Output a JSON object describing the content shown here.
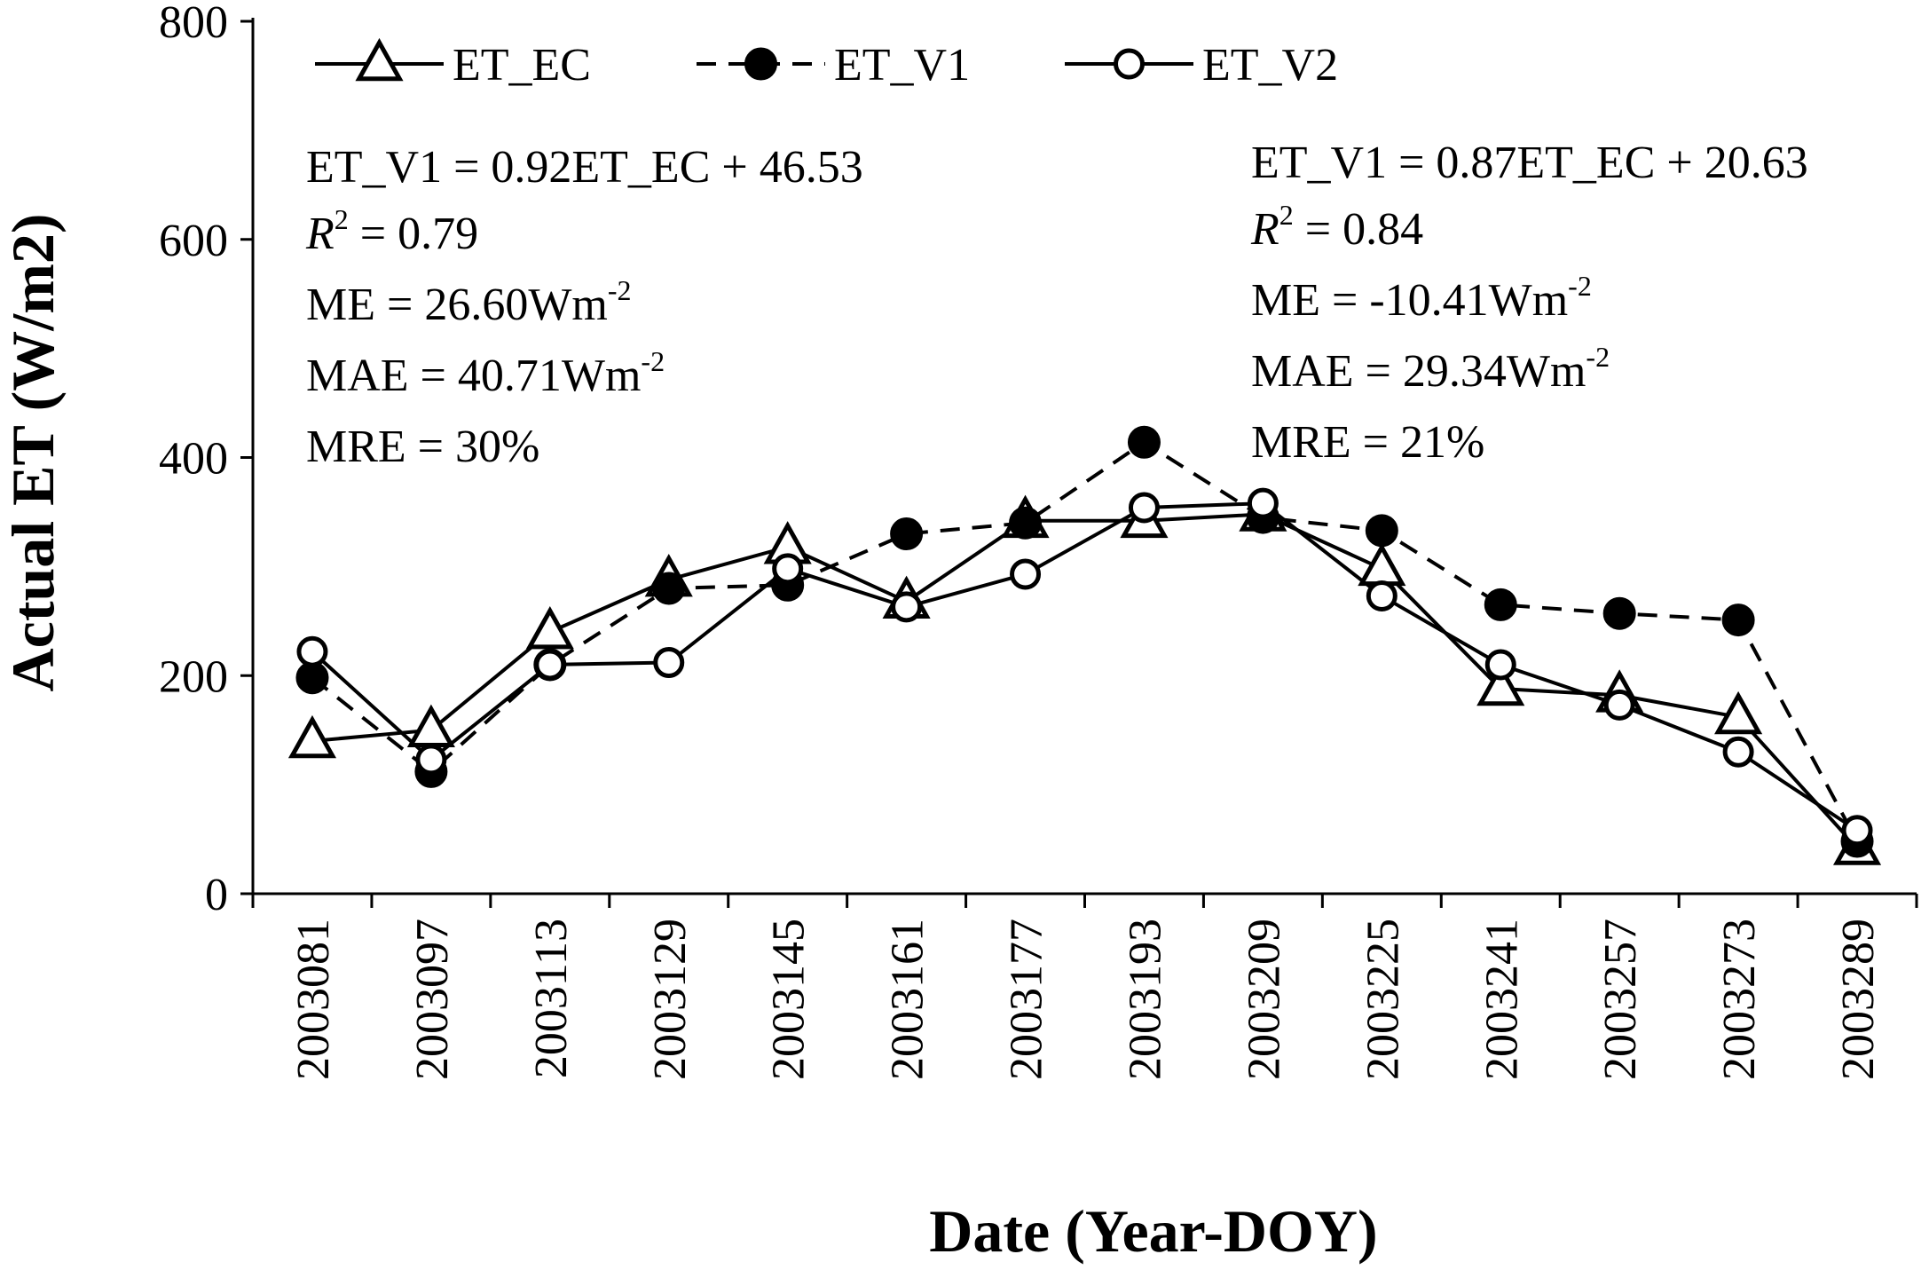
{
  "chart_data": {
    "type": "line",
    "xlabel": "Date (Year-DOY)",
    "ylabel": "Actual ET (W/m2)",
    "ylim": [
      0,
      800
    ],
    "yticks": [
      0,
      200,
      400,
      600,
      800
    ],
    "grid": false,
    "legend_position": "top",
    "categories": [
      "2003081",
      "2003097",
      "2003113",
      "2003129",
      "2003145",
      "2003161",
      "2003177",
      "2003193",
      "2003209",
      "2003225",
      "2003241",
      "2003257",
      "2003273",
      "2003289"
    ],
    "series": [
      {
        "name": "ET_EC",
        "marker": "open-triangle",
        "line": "solid",
        "values": [
          140,
          150,
          240,
          288,
          318,
          268,
          342,
          342,
          348,
          298,
          188,
          182,
          162,
          42
        ]
      },
      {
        "name": "ET_V1",
        "marker": "filled-circle",
        "line": "dashed",
        "values": [
          198,
          112,
          210,
          280,
          283,
          330,
          340,
          414,
          345,
          333,
          265,
          257,
          251,
          48
        ]
      },
      {
        "name": "ET_V2",
        "marker": "open-circle",
        "line": "solid",
        "values": [
          222,
          123,
          210,
          212,
          298,
          263,
          293,
          354,
          358,
          273,
          210,
          173,
          130,
          58
        ]
      }
    ],
    "annotations": {
      "left": {
        "equation": "ET_V1  = 0.92ET_EC + 46.53",
        "r2_symbol": "R",
        "r2_sup": "2",
        "r2_text": " = 0.79",
        "me_text": "ME = 26.60Wm",
        "me_sup": "-2",
        "mae_text": "MAE = 40.71Wm",
        "mae_sup": "-2",
        "mre": "MRE = 30%"
      },
      "right": {
        "equation": "ET_V1  = 0.87ET_EC + 20.63",
        "r2_symbol": "R",
        "r2_sup": "2",
        "r2_text": " = 0.84",
        "me_text": "ME = -10.41Wm",
        "me_sup": "-2",
        "mae_text": "MAE =  29.34Wm",
        "mae_sup": "-2",
        "mre": "MRE = 21%"
      }
    }
  }
}
